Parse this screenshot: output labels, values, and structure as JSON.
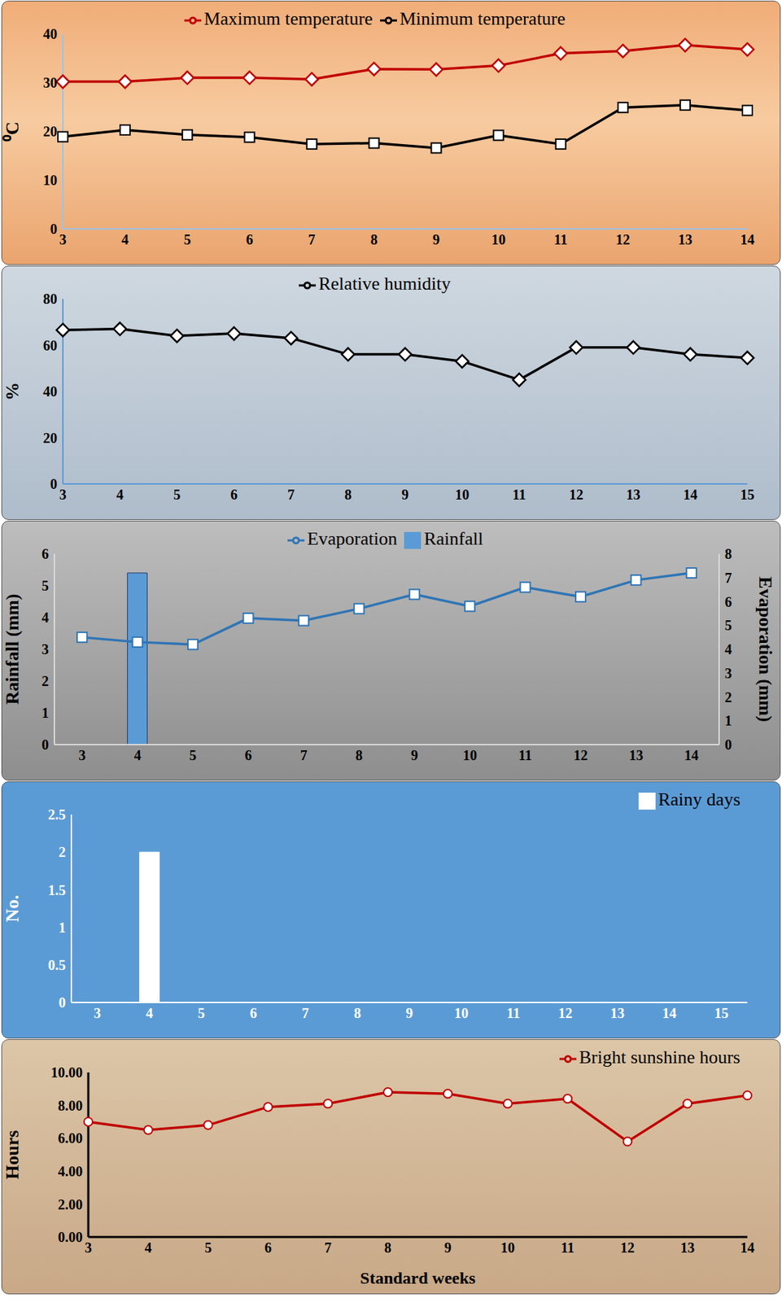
{
  "chart_data": [
    {
      "type": "line",
      "categories": [
        3,
        4,
        5,
        6,
        7,
        8,
        9,
        10,
        11,
        12,
        13,
        14
      ],
      "y_label": "⁰C",
      "ylim": [
        0,
        40
      ],
      "yticks": [
        0,
        10,
        20,
        30,
        40
      ],
      "grid": false,
      "legend": "top",
      "series": [
        {
          "name": "Maximum temperature",
          "color": "#c00000",
          "marker": "diamond",
          "values": [
            30.2,
            30.2,
            31,
            31,
            30.7,
            32.8,
            32.7,
            33.5,
            36,
            36.5,
            37.7,
            36.8
          ]
        },
        {
          "name": "Minimum temperature",
          "color": "#000000",
          "marker": "square",
          "values": [
            18.9,
            20.3,
            19.3,
            18.8,
            17.4,
            17.6,
            16.6,
            19.2,
            17.4,
            24.9,
            25.4,
            24.3
          ]
        }
      ]
    },
    {
      "type": "line",
      "categories": [
        3,
        4,
        5,
        6,
        7,
        8,
        9,
        10,
        11,
        12,
        13,
        14,
        15
      ],
      "y_label": "%",
      "ylim": [
        0,
        80
      ],
      "yticks": [
        0,
        20,
        40,
        60,
        80
      ],
      "grid": false,
      "legend": "top",
      "series": [
        {
          "name": "Relative humidity",
          "color": "#000000",
          "marker": "diamond",
          "values": [
            66.5,
            67,
            64,
            65,
            63,
            56,
            56,
            53,
            45,
            59,
            59,
            56,
            54.5
          ]
        }
      ]
    },
    {
      "type": "bar",
      "categories": [
        3,
        4,
        5,
        6,
        7,
        8,
        9,
        10,
        11,
        12,
        13,
        14
      ],
      "y_label": "Rainfall (mm)",
      "y2_label": "Evaporation (mm)",
      "ylim": [
        0,
        6
      ],
      "yticks": [
        0,
        1,
        2,
        3,
        4,
        5,
        6
      ],
      "y2lim": [
        0,
        8
      ],
      "y2ticks": [
        0,
        1,
        2,
        3,
        4,
        5,
        6,
        7,
        8
      ],
      "grid": false,
      "legend": "top",
      "series": [
        {
          "name": "Rainfall",
          "color": "#5b9bd5",
          "type": "bar",
          "values": [
            0,
            5.4,
            0,
            0,
            0,
            0,
            0,
            0,
            0,
            0,
            0,
            0
          ]
        },
        {
          "name": "Evaporation",
          "color": "#2e75b6",
          "type": "line",
          "marker": "square",
          "axis": "y2",
          "values": [
            4.5,
            4.3,
            4.2,
            5.3,
            5.2,
            5.7,
            6.3,
            5.8,
            6.6,
            6.2,
            6.9,
            7.2
          ]
        }
      ]
    },
    {
      "type": "bar",
      "categories": [
        3,
        4,
        5,
        6,
        7,
        8,
        9,
        10,
        11,
        12,
        13,
        14,
        15
      ],
      "y_label": "No.",
      "ylim": [
        0,
        2.5
      ],
      "yticks": [
        0,
        0.5,
        1,
        1.5,
        2,
        2.5
      ],
      "grid": false,
      "legend": "top-right",
      "series": [
        {
          "name": "Rainy days",
          "color": "#ffffff",
          "values": [
            0,
            2,
            0,
            0,
            0,
            0,
            0,
            0,
            0,
            0,
            0,
            0,
            0
          ]
        }
      ]
    },
    {
      "type": "line",
      "categories": [
        3,
        4,
        5,
        6,
        7,
        8,
        9,
        10,
        11,
        12,
        13,
        14
      ],
      "y_label": "Hours",
      "x_label": "Standard weeks",
      "ylim": [
        0,
        10
      ],
      "yticks": [
        {
          "value": 0,
          "label": "0.00"
        },
        {
          "value": 2,
          "label": "2.00"
        },
        {
          "value": 4,
          "label": "4.00"
        },
        {
          "value": 6,
          "label": "6.00"
        },
        {
          "value": 8,
          "label": "8.00"
        },
        {
          "value": 10,
          "label": "10.00"
        }
      ],
      "grid": false,
      "legend": "top-right",
      "series": [
        {
          "name": "Bright sunshine hours",
          "color": "#c00000",
          "marker": "circle",
          "values": [
            7.0,
            6.5,
            6.8,
            7.9,
            8.1,
            8.8,
            8.7,
            8.1,
            8.4,
            5.8,
            8.1,
            8.6
          ]
        }
      ]
    }
  ]
}
